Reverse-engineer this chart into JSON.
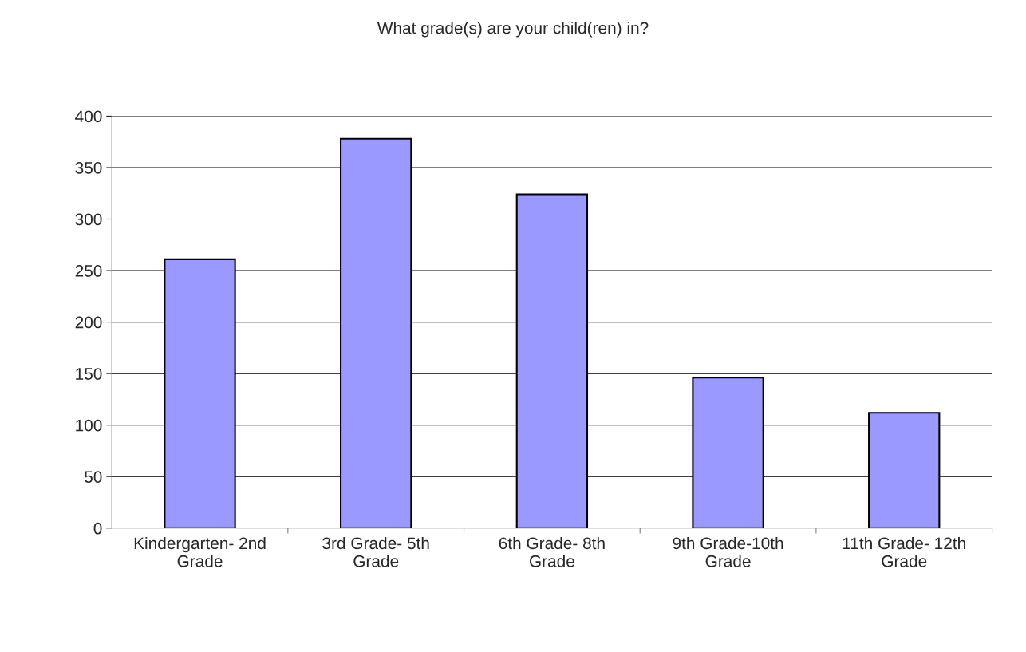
{
  "chart_data": {
    "type": "bar",
    "title": "What grade(s) are your child(ren) in?",
    "categories": [
      "Kindergarten- 2nd Grade",
      "3rd Grade- 5th Grade",
      "6th Grade- 8th Grade",
      "9th Grade-10th Grade",
      "11th Grade- 12th Grade"
    ],
    "values": [
      261,
      378,
      324,
      146,
      112
    ],
    "color": "#9999ff",
    "ylim": [
      0,
      400
    ],
    "yticks": [
      0,
      50,
      100,
      150,
      200,
      250,
      300,
      350,
      400
    ],
    "grid": "y",
    "legend": false
  }
}
